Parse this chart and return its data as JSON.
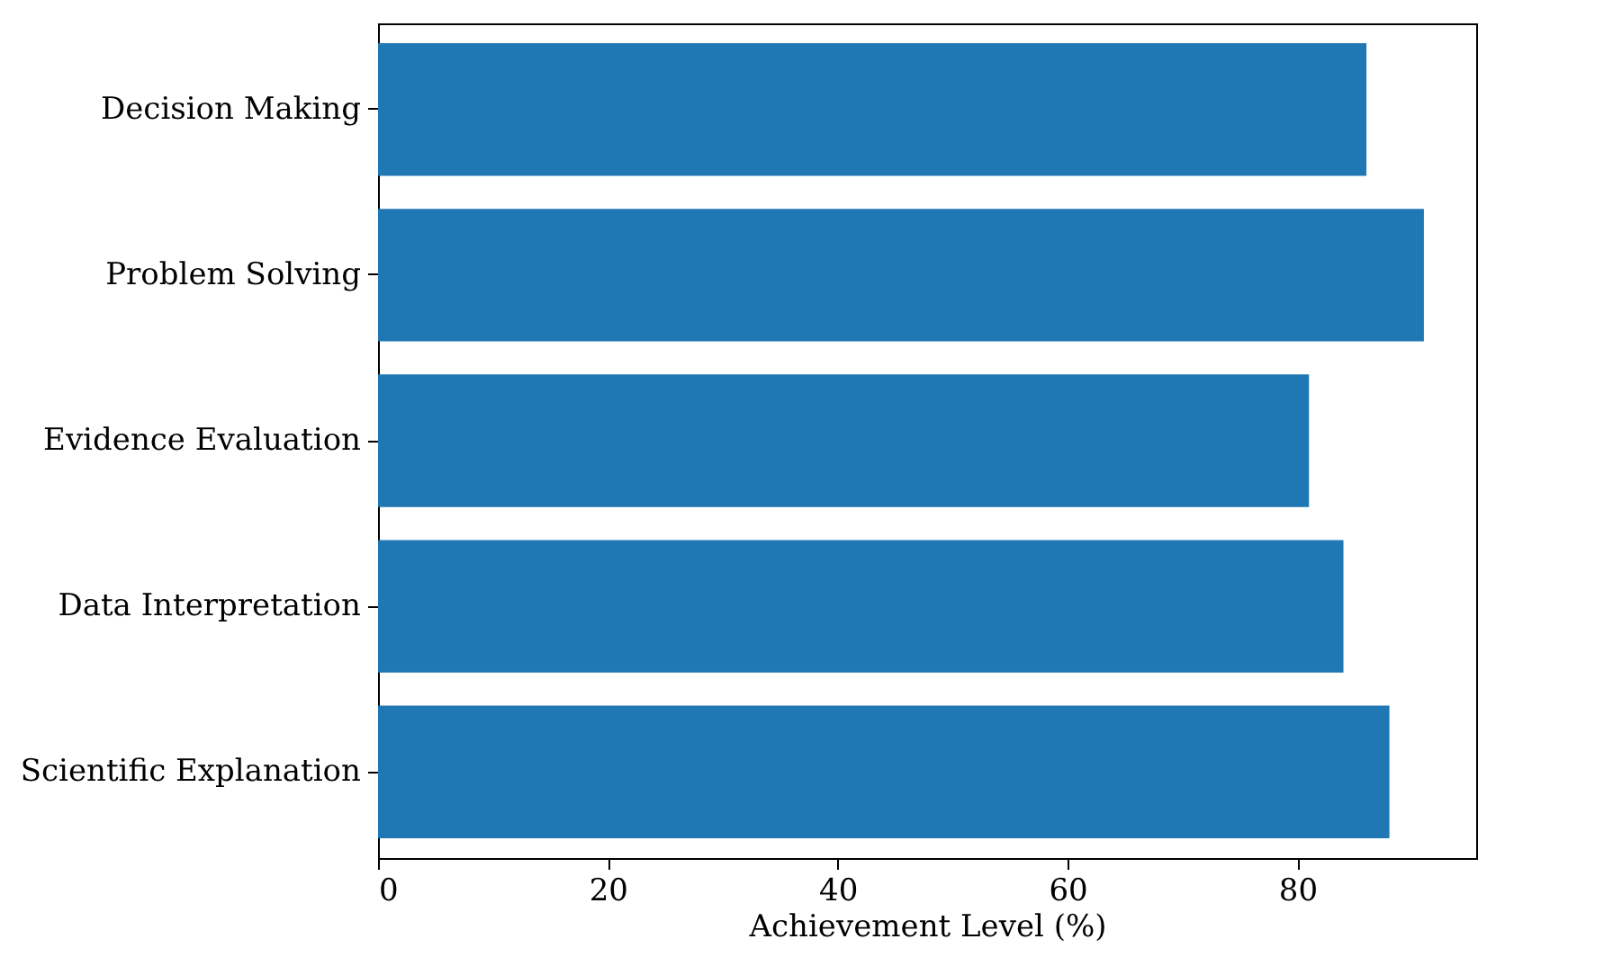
{
  "chart_data": {
    "type": "bar",
    "orientation": "horizontal",
    "xlabel": "Achievement Level (%)",
    "categories": [
      "Decision Making",
      "Problem Solving",
      "Evidence Evaluation",
      "Data Interpretation",
      "Scientific Explanation"
    ],
    "values": [
      86,
      91,
      81,
      84,
      88
    ],
    "color": "#1f77b4",
    "xlim": [
      0,
      95.55
    ],
    "xticks": [
      0,
      20,
      40,
      60,
      80
    ],
    "grid": false
  }
}
